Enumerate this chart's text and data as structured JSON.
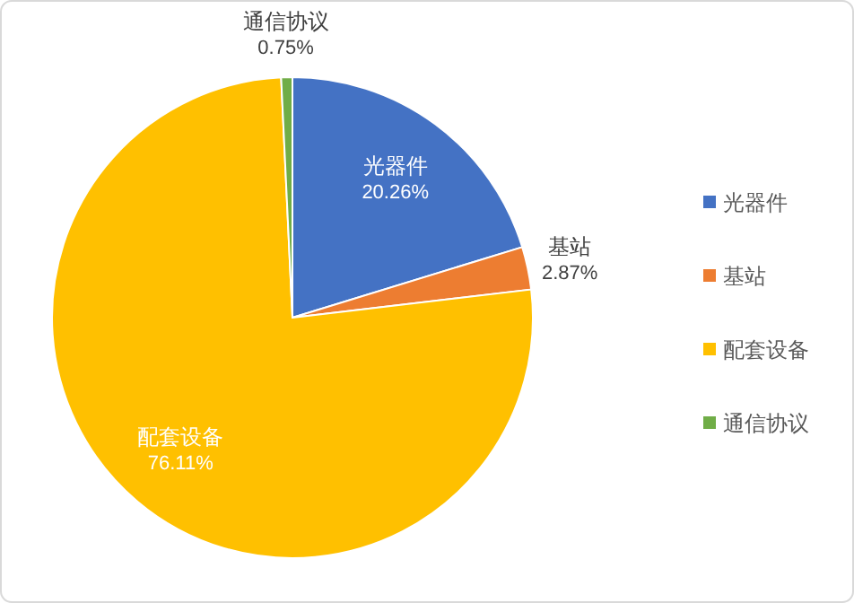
{
  "chart_data": {
    "type": "pie",
    "categories": [
      "光器件",
      "基站",
      "配套设备",
      "通信协议"
    ],
    "values": [
      20.26,
      2.87,
      76.11,
      0.75
    ],
    "value_labels": [
      "20.26%",
      "2.87%",
      "76.11%",
      "0.75%"
    ],
    "colors": [
      "#4472c4",
      "#ed7d31",
      "#ffc000",
      "#70ad47"
    ],
    "legend": "right"
  }
}
